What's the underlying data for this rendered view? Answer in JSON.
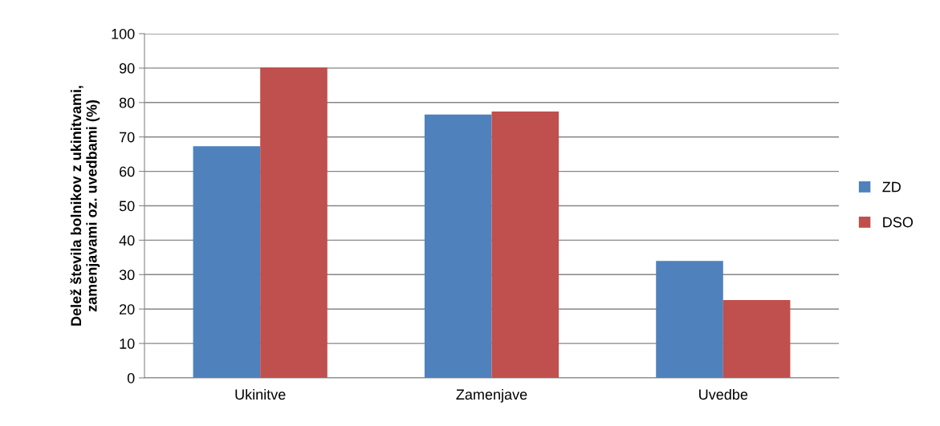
{
  "chart_data": {
    "type": "bar",
    "ylabel": "Delež števila bolnikov z ukinitvami,\nzamenjavami oz. uvedbami (%)",
    "categories": [
      "Ukinitve",
      "Zamenjave",
      "Uvedbe"
    ],
    "series": [
      {
        "name": "ZD",
        "color": "#4f81bd",
        "values": [
          67.3,
          76.5,
          34.0
        ]
      },
      {
        "name": "DSO",
        "color": "#c0504d",
        "values": [
          90.2,
          77.4,
          22.6
        ]
      }
    ],
    "ylim": [
      0,
      100
    ],
    "yticks": [
      0,
      10,
      20,
      30,
      40,
      50,
      60,
      70,
      80,
      90,
      100
    ],
    "grid": "y",
    "legend": "right"
  }
}
